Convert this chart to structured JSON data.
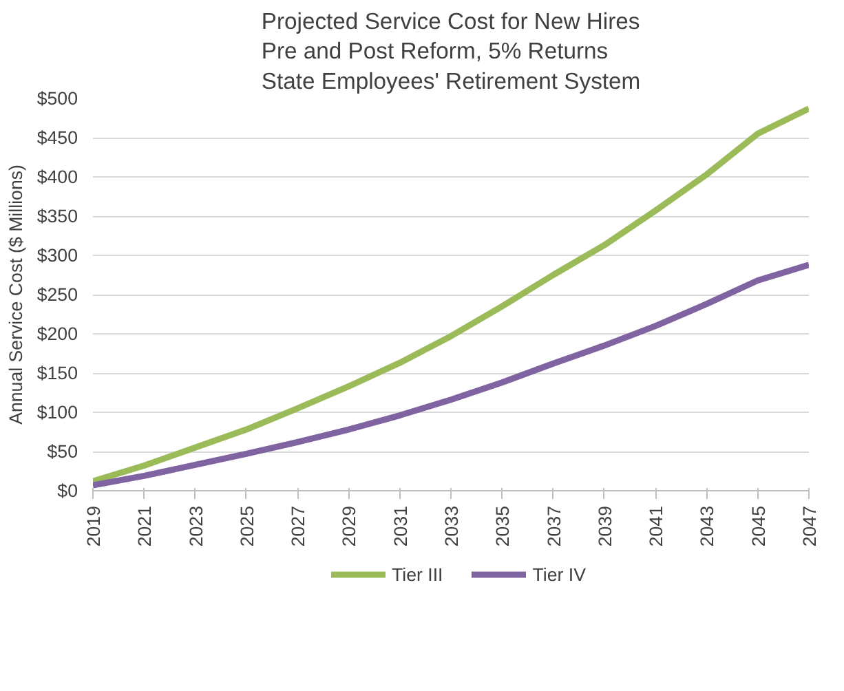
{
  "chart_data": {
    "type": "line",
    "title": "Projected Service Cost for New Hires\nPre and Post Reform, 5% Returns\nState Employees' Retirement System",
    "ylabel": "Annual Service Cost ($ Millions)",
    "x": [
      2019,
      2021,
      2023,
      2025,
      2027,
      2029,
      2031,
      2033,
      2035,
      2037,
      2039,
      2041,
      2043,
      2045,
      2047
    ],
    "series": [
      {
        "name": "Tier III",
        "color": "#9bbb59",
        "values": [
          12,
          32,
          55,
          78,
          105,
          133,
          163,
          197,
          235,
          275,
          313,
          357,
          403,
          455,
          487
        ]
      },
      {
        "name": "Tier IV",
        "color": "#8064a2",
        "values": [
          7,
          19,
          33,
          47,
          62,
          78,
          96,
          116,
          138,
          162,
          185,
          210,
          238,
          268,
          288
        ]
      }
    ],
    "xlim": [
      2019,
      2047
    ],
    "xticks": [
      2019,
      2021,
      2023,
      2025,
      2027,
      2029,
      2031,
      2033,
      2035,
      2037,
      2039,
      2041,
      2043,
      2045,
      2047
    ],
    "ylim": [
      0,
      500
    ],
    "yticks": [
      {
        "value": 0,
        "label": "$0"
      },
      {
        "value": 50,
        "label": "$50"
      },
      {
        "value": 100,
        "label": "$100"
      },
      {
        "value": 150,
        "label": "$150"
      },
      {
        "value": 200,
        "label": "$200"
      },
      {
        "value": 250,
        "label": "$250"
      },
      {
        "value": 300,
        "label": "$300"
      },
      {
        "value": 350,
        "label": "$350"
      },
      {
        "value": 400,
        "label": "$400"
      },
      {
        "value": 450,
        "label": "$450"
      },
      {
        "value": 500,
        "label": "$500"
      }
    ],
    "grid": "y",
    "legend": "bottom",
    "line_style": "solid",
    "marker": "none"
  }
}
